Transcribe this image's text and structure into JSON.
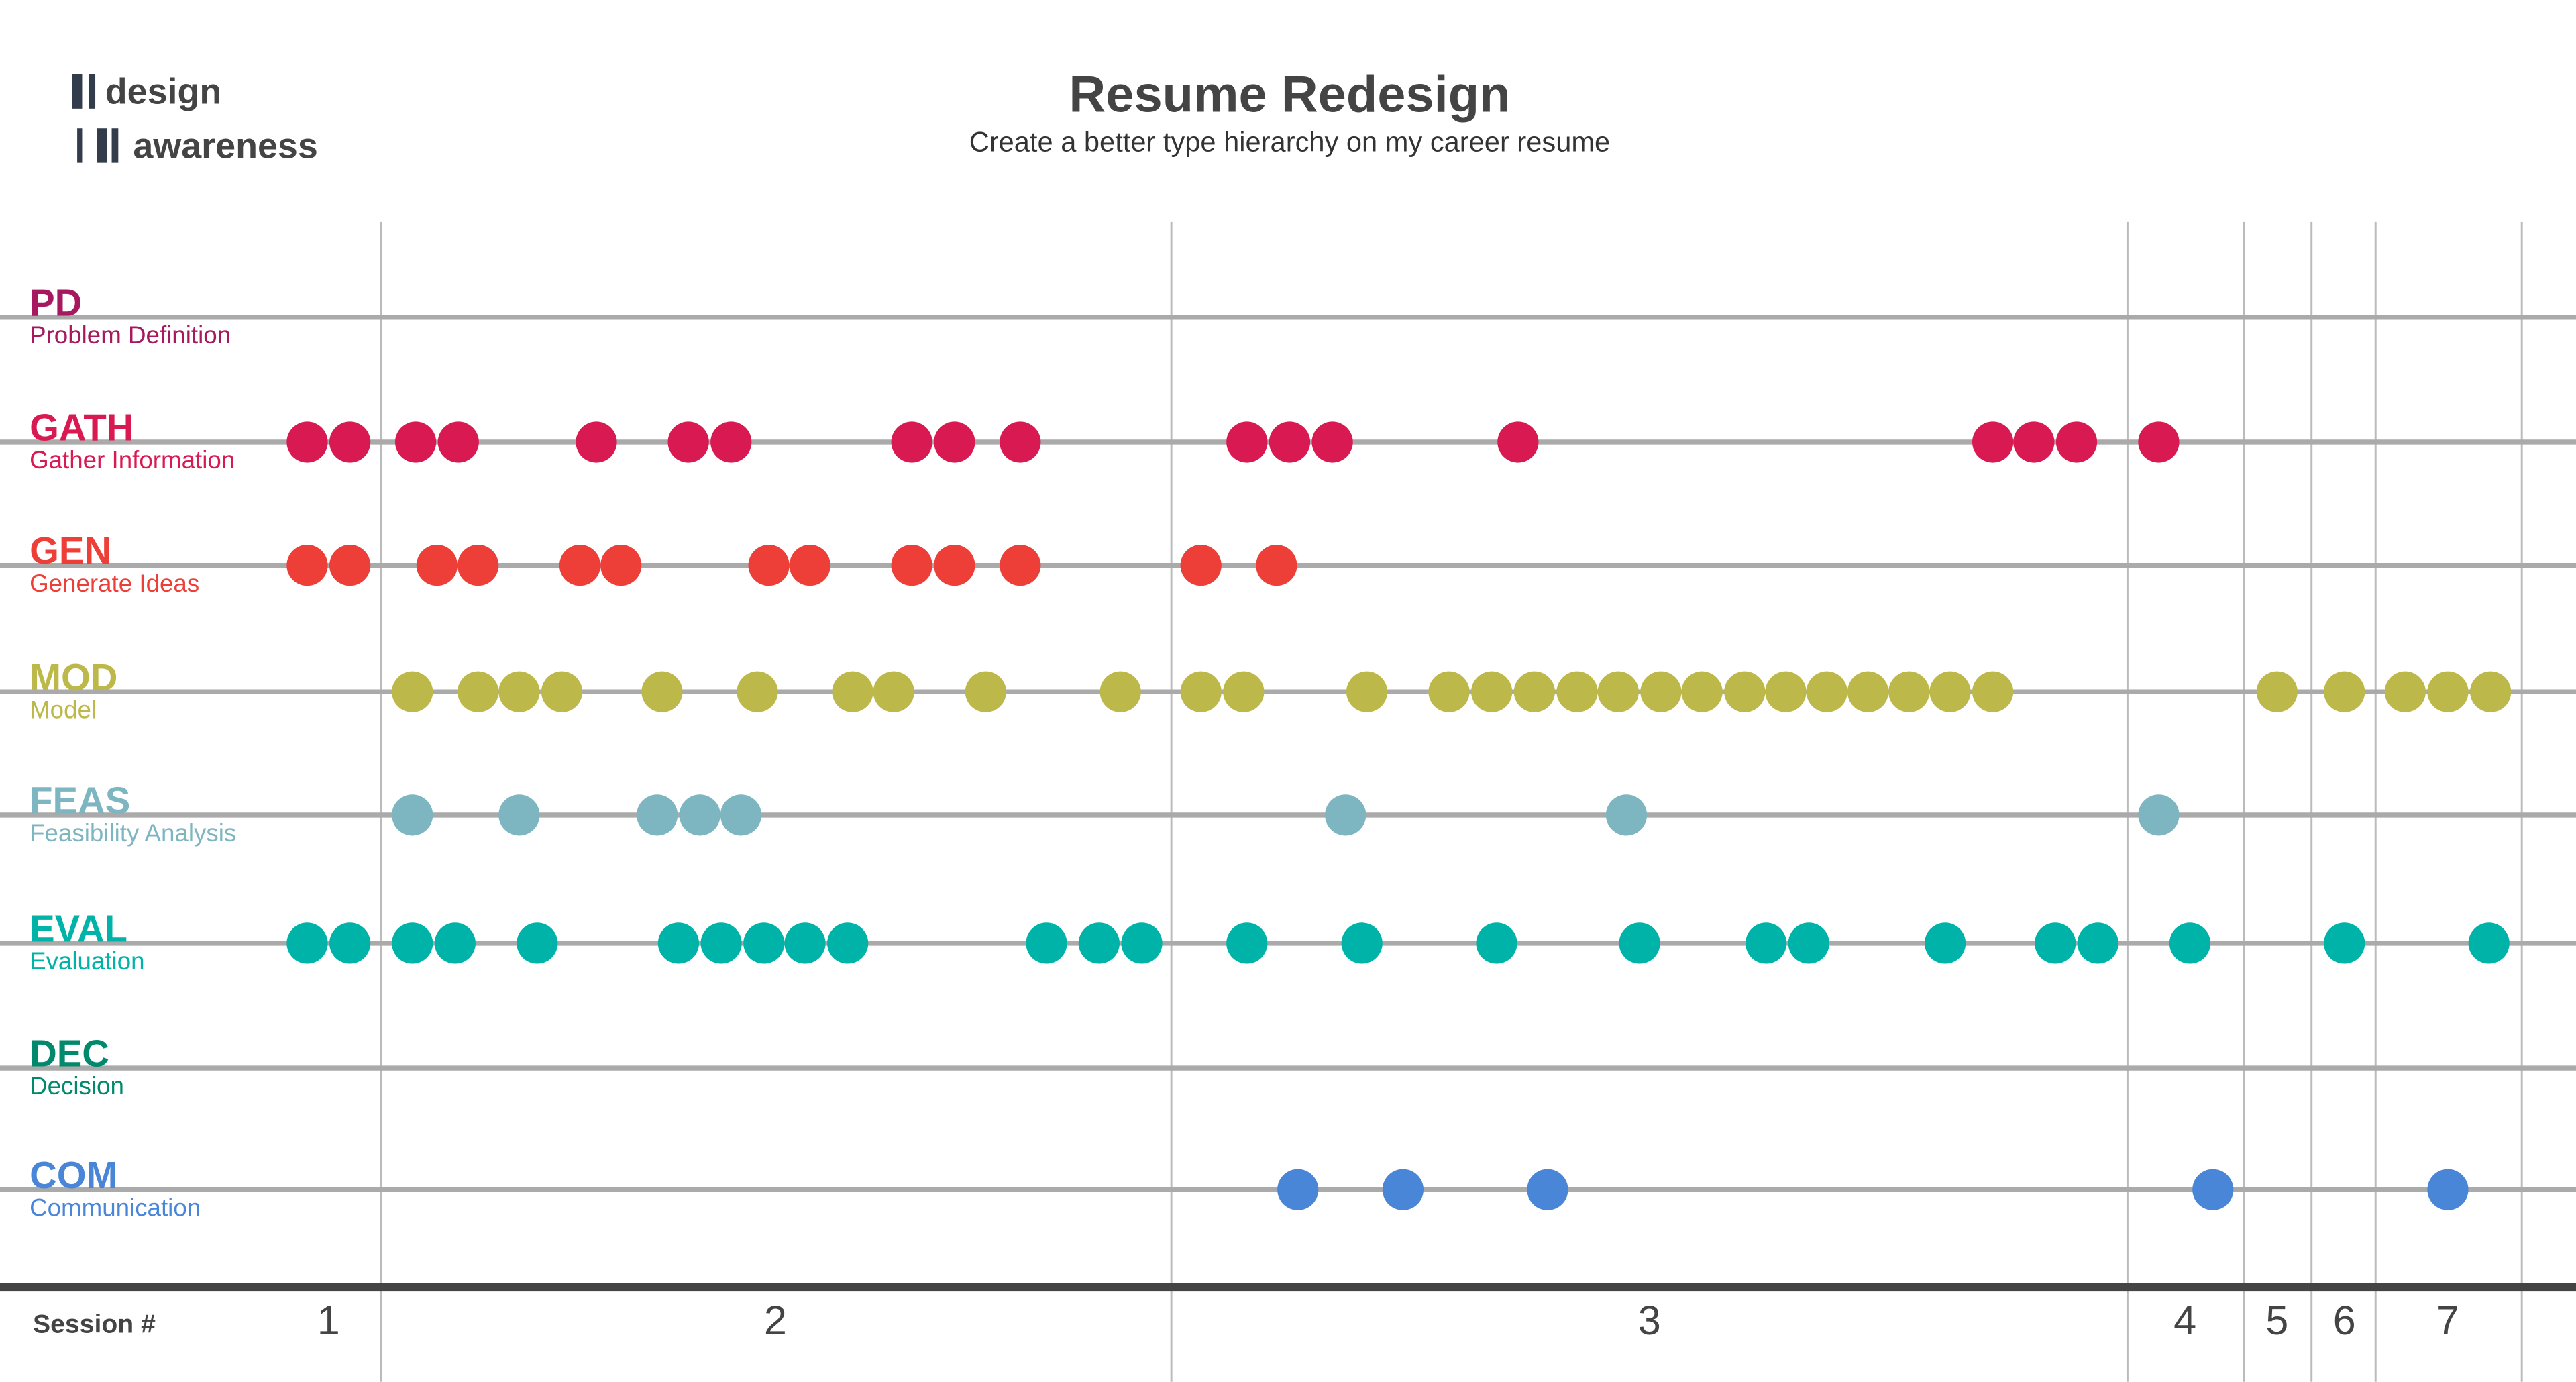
{
  "logo": {
    "line1": "design",
    "line2": "awareness",
    "bar_color": "#333c4a"
  },
  "chart_data": {
    "type": "scatter",
    "title": "Resume Redesign",
    "subtitle": "Create a better type hierarchy on my career resume",
    "xlabel": "Session #",
    "x_units": "timeline units",
    "xlim": [
      170,
      1540
    ],
    "session_boundaries": [
      232,
      713,
      1295,
      1366,
      1407,
      1446,
      1535
    ],
    "sessions": [
      {
        "label": "1",
        "center": 200
      },
      {
        "label": "2",
        "center": 472
      },
      {
        "label": "3",
        "center": 1004
      },
      {
        "label": "4",
        "center": 1330
      },
      {
        "label": "5",
        "center": 1386
      },
      {
        "label": "6",
        "center": 1427
      },
      {
        "label": "7",
        "center": 1490
      }
    ],
    "series": [
      {
        "abbr": "PD",
        "name": "Problem Definition",
        "color": "#a6195f",
        "x": []
      },
      {
        "abbr": "GATH",
        "name": "Gather Information",
        "color": "#d91a52",
        "x": [
          187,
          213,
          253,
          279,
          363,
          419,
          445,
          555,
          581,
          621,
          759,
          785,
          811,
          924,
          1213,
          1238,
          1264,
          1314
        ]
      },
      {
        "abbr": "GEN",
        "name": "Generate Ideas",
        "color": "#ee3e38",
        "x": [
          187,
          213,
          266,
          291,
          353,
          378,
          468,
          493,
          555,
          581,
          621,
          731,
          777
        ]
      },
      {
        "abbr": "MOD",
        "name": "Model",
        "color": "#bdb84a",
        "x": [
          251,
          291,
          316,
          342,
          403,
          461,
          519,
          544,
          600,
          682,
          731,
          757,
          832,
          882,
          908,
          934,
          960,
          985,
          1011,
          1036,
          1062,
          1087,
          1112,
          1137,
          1162,
          1187,
          1213,
          1386,
          1427,
          1464,
          1490,
          1516
        ]
      },
      {
        "abbr": "FEAS",
        "name": "Feasibility Analysis",
        "color": "#7db6c0",
        "x": [
          251,
          316,
          400,
          426,
          451,
          819,
          990,
          1314
        ]
      },
      {
        "abbr": "EVAL",
        "name": "Evaluation",
        "color": "#00b3a8",
        "x": [
          187,
          213,
          251,
          277,
          327,
          413,
          439,
          465,
          490,
          516,
          637,
          669,
          695,
          759,
          829,
          911,
          998,
          1075,
          1101,
          1184,
          1251,
          1277,
          1333,
          1427,
          1515
        ]
      },
      {
        "abbr": "DEC",
        "name": "Decision",
        "color": "#00896c",
        "x": []
      },
      {
        "abbr": "COM",
        "name": "Communication",
        "color": "#4a86d8",
        "x": [
          790,
          854,
          942,
          1347,
          1490
        ]
      }
    ]
  }
}
